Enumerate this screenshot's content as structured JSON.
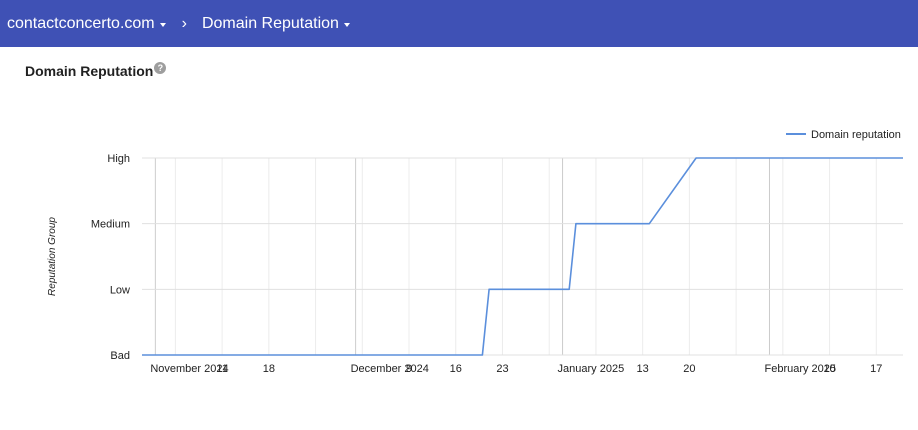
{
  "header": {
    "domain_label": "contactconcerto.com",
    "separator": "›",
    "page_label": "Domain Reputation"
  },
  "page": {
    "title": "Domain Reputation",
    "help_glyph": "?"
  },
  "colors": {
    "header_bg": "#3f51b5",
    "series_line": "#5b8fdc"
  },
  "chart_data": {
    "type": "line",
    "title": "",
    "xlabel": "",
    "ylabel": "Reputation Group",
    "y_categories": [
      "Bad",
      "Low",
      "Medium",
      "High"
    ],
    "x_range": [
      "2024-10-30",
      "2025-02-21"
    ],
    "x_ticks": [
      {
        "date": "2024-11-01",
        "label": "November 2024",
        "major": true
      },
      {
        "date": "2024-11-04",
        "label": "",
        "major": false
      },
      {
        "date": "2024-11-11",
        "label": "11",
        "major": false
      },
      {
        "date": "2024-11-18",
        "label": "18",
        "major": false
      },
      {
        "date": "2024-11-25",
        "label": "",
        "major": false
      },
      {
        "date": "2024-12-01",
        "label": "December 2024",
        "major": true
      },
      {
        "date": "2024-12-02",
        "label": "",
        "major": false
      },
      {
        "date": "2024-12-09",
        "label": "9",
        "major": false
      },
      {
        "date": "2024-12-16",
        "label": "16",
        "major": false
      },
      {
        "date": "2024-12-23",
        "label": "23",
        "major": false
      },
      {
        "date": "2024-12-30",
        "label": "",
        "major": false
      },
      {
        "date": "2025-01-01",
        "label": "January 2025",
        "major": true
      },
      {
        "date": "2025-01-06",
        "label": "",
        "major": false
      },
      {
        "date": "2025-01-13",
        "label": "13",
        "major": false
      },
      {
        "date": "2025-01-20",
        "label": "20",
        "major": false
      },
      {
        "date": "2025-01-27",
        "label": "",
        "major": false
      },
      {
        "date": "2025-02-01",
        "label": "February 2025",
        "major": true
      },
      {
        "date": "2025-02-03",
        "label": "",
        "major": false
      },
      {
        "date": "2025-02-10",
        "label": "10",
        "major": false
      },
      {
        "date": "2025-02-17",
        "label": "17",
        "major": false
      }
    ],
    "legend_position": "top-right",
    "grid": true,
    "series": [
      {
        "name": "Domain reputation",
        "points": [
          {
            "x": "2024-10-30",
            "y": "Bad"
          },
          {
            "x": "2024-12-20",
            "y": "Bad"
          },
          {
            "x": "2024-12-21",
            "y": "Low"
          },
          {
            "x": "2025-01-02",
            "y": "Low"
          },
          {
            "x": "2025-01-03",
            "y": "Medium"
          },
          {
            "x": "2025-01-14",
            "y": "Medium"
          },
          {
            "x": "2025-01-21",
            "y": "High"
          },
          {
            "x": "2025-02-21",
            "y": "High"
          }
        ]
      }
    ]
  }
}
